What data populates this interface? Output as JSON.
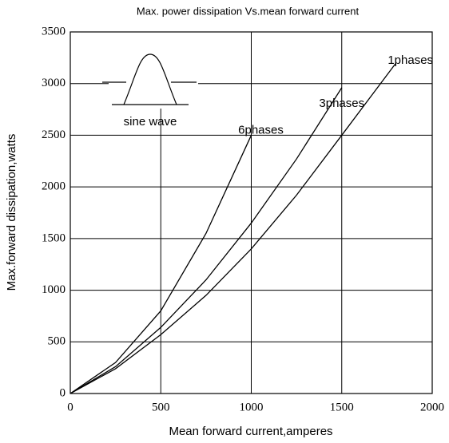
{
  "chart_data": {
    "type": "line",
    "title": "Max. power dissipation Vs.mean forward current",
    "x_label": "Mean forward  current,amperes",
    "y_label": "Max.forward  dissipation,watts",
    "annotation": "sine wave",
    "series": [
      {
        "name": "6phases",
        "color": "#000000",
        "x": [
          0,
          250,
          500,
          750,
          1000
        ],
        "values": [
          0,
          300,
          800,
          1550,
          2500
        ]
      },
      {
        "name": "3phases",
        "color": "#000000",
        "x": [
          0,
          250,
          500,
          750,
          1000,
          1250,
          1500
        ],
        "values": [
          0,
          260,
          640,
          1100,
          1650,
          2270,
          2960
        ]
      },
      {
        "name": "1phases",
        "color": "#000000",
        "x": [
          0,
          250,
          500,
          750,
          1000,
          1250,
          1500,
          1800
        ],
        "values": [
          0,
          240,
          570,
          950,
          1400,
          1920,
          2500,
          3200
        ]
      }
    ],
    "xlim": [
      0,
      2000
    ],
    "xticks": [
      0,
      500,
      1000,
      1500,
      2000
    ],
    "ylim": [
      0,
      3500
    ],
    "yticks": [
      0,
      500,
      1000,
      1500,
      2000,
      2500,
      3000,
      3500
    ],
    "grid": true
  }
}
